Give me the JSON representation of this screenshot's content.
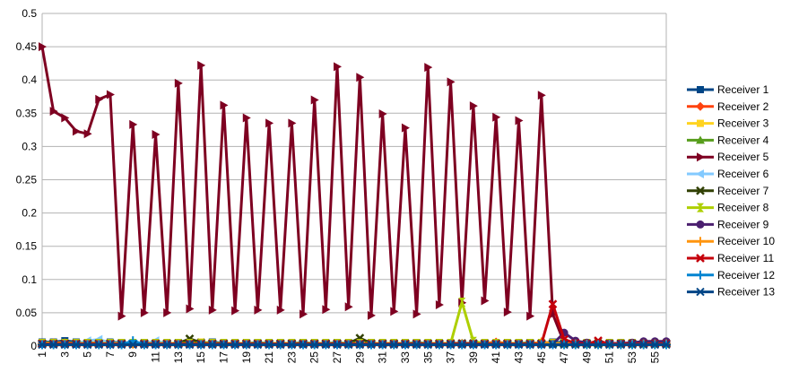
{
  "chart_data": {
    "type": "line",
    "title": "",
    "xlabel": "",
    "ylabel": "",
    "ylim": [
      0,
      0.5
    ],
    "yticks": [
      "0",
      "0.05",
      "0.1",
      "0.15",
      "0.2",
      "0.25",
      "0.3",
      "0.35",
      "0.4",
      "0.45",
      "0.5"
    ],
    "x": [
      1,
      2,
      3,
      4,
      5,
      6,
      7,
      8,
      9,
      10,
      11,
      12,
      13,
      14,
      15,
      16,
      17,
      18,
      19,
      20,
      21,
      22,
      23,
      24,
      25,
      26,
      27,
      28,
      29,
      30,
      31,
      32,
      33,
      34,
      35,
      36,
      37,
      38,
      39,
      40,
      41,
      42,
      43,
      44,
      45,
      46,
      47,
      48,
      49,
      50,
      51,
      52,
      53,
      54,
      55,
      56
    ],
    "xtick_labels": [
      "1",
      "3",
      "5",
      "7",
      "9",
      "11",
      "13",
      "15",
      "17",
      "19",
      "21",
      "23",
      "25",
      "27",
      "29",
      "31",
      "33",
      "35",
      "37",
      "39",
      "41",
      "43",
      "45",
      "47",
      "49",
      "51",
      "53",
      "55"
    ],
    "grid": "horizontal",
    "legend_position": "right",
    "series": [
      {
        "name": "Receiver 1",
        "color": "#004586",
        "marker": "square",
        "values": [
          0.006,
          0.006,
          0.008,
          0.006,
          0.005,
          0.004,
          0.006,
          0.005,
          0.004,
          0.005,
          0.004,
          0.003,
          0.005,
          0.004,
          0.004,
          0.006,
          0.004,
          0.004,
          0.004,
          0.005,
          0.004,
          0.004,
          0.004,
          0.005,
          0.004,
          0.004,
          0.005,
          0.004,
          0.004,
          0.004,
          0.004,
          0.004,
          0.004,
          0.005,
          0.004,
          0.004,
          0.004,
          0.004,
          0.004,
          0.004,
          0.004,
          0.004,
          0.004,
          0.005,
          0.004,
          0.006,
          0.005,
          0.005,
          0.004,
          0.004,
          0.004,
          0.004,
          0.004,
          0.004,
          0.004,
          0.004
        ]
      },
      {
        "name": "Receiver 2",
        "color": "#ff420e",
        "marker": "diamond",
        "values": [
          0.004,
          0.005,
          0.005,
          0.004,
          0.004,
          0.005,
          0.004,
          0.004,
          0.004,
          0.004,
          0.004,
          0.004,
          0.004,
          0.004,
          0.004,
          0.004,
          0.004,
          0.004,
          0.004,
          0.004,
          0.004,
          0.004,
          0.004,
          0.004,
          0.004,
          0.004,
          0.004,
          0.004,
          0.004,
          0.004,
          0.004,
          0.004,
          0.004,
          0.004,
          0.004,
          0.004,
          0.004,
          0.004,
          0.004,
          0.004,
          0.006,
          0.004,
          0.004,
          0.004,
          0.004,
          0.004,
          0.004,
          0.004,
          0.004,
          0.004,
          0.004,
          0.004,
          0.004,
          0.004,
          0.004,
          0.004
        ]
      },
      {
        "name": "Receiver 3",
        "color": "#ffd320",
        "marker": "square",
        "values": [
          0.005,
          0.004,
          0.004,
          0.004,
          0.004,
          0.004,
          0.004,
          0.004,
          0.004,
          0.004,
          0.004,
          0.004,
          0.004,
          0.004,
          0.006,
          0.004,
          0.004,
          0.004,
          0.004,
          0.004,
          0.004,
          0.004,
          0.004,
          0.004,
          0.004,
          0.004,
          0.004,
          0.004,
          0.004,
          0.004,
          0.004,
          0.004,
          0.004,
          0.004,
          0.004,
          0.004,
          0.004,
          0.004,
          0.004,
          0.004,
          0.004,
          0.004,
          0.004,
          0.004,
          0.004,
          0.004,
          0.004,
          0.004,
          0.004,
          0.004,
          0.004,
          0.004,
          0.004,
          0.004,
          0.004,
          0.004
        ]
      },
      {
        "name": "Receiver 4",
        "color": "#579d1c",
        "marker": "triangle",
        "values": [
          0.004,
          0.004,
          0.004,
          0.004,
          0.004,
          0.004,
          0.004,
          0.004,
          0.005,
          0.004,
          0.004,
          0.004,
          0.004,
          0.004,
          0.004,
          0.004,
          0.004,
          0.004,
          0.004,
          0.004,
          0.004,
          0.004,
          0.004,
          0.004,
          0.004,
          0.004,
          0.004,
          0.004,
          0.004,
          0.004,
          0.004,
          0.004,
          0.004,
          0.004,
          0.004,
          0.004,
          0.004,
          0.004,
          0.004,
          0.004,
          0.004,
          0.004,
          0.004,
          0.004,
          0.004,
          0.004,
          0.004,
          0.004,
          0.004,
          0.004,
          0.004,
          0.004,
          0.004,
          0.004,
          0.004,
          0.004
        ]
      },
      {
        "name": "Receiver 5",
        "color": "#7e0021",
        "marker": "triangle-right",
        "values": [
          0.45,
          0.353,
          0.343,
          0.323,
          0.319,
          0.371,
          0.378,
          0.045,
          0.333,
          0.05,
          0.318,
          0.05,
          0.395,
          0.056,
          0.422,
          0.054,
          0.362,
          0.053,
          0.343,
          0.054,
          0.335,
          0.054,
          0.335,
          0.048,
          0.37,
          0.055,
          0.42,
          0.059,
          0.404,
          0.046,
          0.349,
          0.052,
          0.328,
          0.048,
          0.419,
          0.062,
          0.397,
          0.065,
          0.361,
          0.068,
          0.344,
          0.051,
          0.339,
          0.045,
          0.377,
          0.048,
          0.005,
          0.004,
          0.003,
          0.003,
          0.003,
          0.003,
          0.003,
          0.003,
          0.003,
          0.003
        ]
      },
      {
        "name": "Receiver 6",
        "color": "#83caff",
        "marker": "triangle-left",
        "values": [
          0.004,
          0.004,
          0.004,
          0.004,
          0.008,
          0.01,
          0.005,
          0.004,
          0.004,
          0.004,
          0.008,
          0.004,
          0.004,
          0.004,
          0.004,
          0.004,
          0.004,
          0.004,
          0.004,
          0.004,
          0.004,
          0.004,
          0.004,
          0.004,
          0.004,
          0.004,
          0.004,
          0.004,
          0.004,
          0.004,
          0.004,
          0.004,
          0.004,
          0.004,
          0.004,
          0.004,
          0.004,
          0.004,
          0.004,
          0.004,
          0.004,
          0.004,
          0.004,
          0.004,
          0.004,
          0.004,
          0.004,
          0.004,
          0.004,
          0.004,
          0.004,
          0.004,
          0.004,
          0.004,
          0.004,
          0.004
        ]
      },
      {
        "name": "Receiver 7",
        "color": "#314004",
        "marker": "x",
        "values": [
          0.004,
          0.004,
          0.004,
          0.004,
          0.004,
          0.004,
          0.004,
          0.004,
          0.004,
          0.004,
          0.004,
          0.004,
          0.004,
          0.011,
          0.005,
          0.004,
          0.004,
          0.004,
          0.004,
          0.004,
          0.004,
          0.004,
          0.004,
          0.004,
          0.004,
          0.004,
          0.004,
          0.004,
          0.012,
          0.004,
          0.004,
          0.004,
          0.004,
          0.004,
          0.004,
          0.004,
          0.004,
          0.004,
          0.004,
          0.004,
          0.004,
          0.004,
          0.004,
          0.004,
          0.004,
          0.004,
          0.004,
          0.004,
          0.004,
          0.004,
          0.004,
          0.004,
          0.004,
          0.004,
          0.004,
          0.004
        ]
      },
      {
        "name": "Receiver 8",
        "color": "#aecf00",
        "marker": "hourglass",
        "values": [
          0.004,
          0.004,
          0.004,
          0.004,
          0.004,
          0.004,
          0.004,
          0.004,
          0.004,
          0.004,
          0.004,
          0.004,
          0.004,
          0.004,
          0.004,
          0.004,
          0.004,
          0.004,
          0.004,
          0.004,
          0.004,
          0.004,
          0.004,
          0.004,
          0.004,
          0.004,
          0.004,
          0.004,
          0.004,
          0.004,
          0.004,
          0.004,
          0.004,
          0.004,
          0.004,
          0.004,
          0.004,
          0.066,
          0.007,
          0.004,
          0.004,
          0.004,
          0.004,
          0.004,
          0.004,
          0.004,
          0.004,
          0.004,
          0.004,
          0.004,
          0.004,
          0.004,
          0.004,
          0.004,
          0.004,
          0.004
        ]
      },
      {
        "name": "Receiver 9",
        "color": "#4b1f6f",
        "marker": "circle",
        "values": [
          0.003,
          0.003,
          0.003,
          0.003,
          0.003,
          0.003,
          0.003,
          0.003,
          0.003,
          0.003,
          0.003,
          0.003,
          0.003,
          0.003,
          0.003,
          0.003,
          0.003,
          0.003,
          0.003,
          0.003,
          0.003,
          0.003,
          0.003,
          0.003,
          0.003,
          0.003,
          0.003,
          0.003,
          0.003,
          0.003,
          0.003,
          0.003,
          0.003,
          0.003,
          0.003,
          0.003,
          0.003,
          0.003,
          0.003,
          0.003,
          0.003,
          0.003,
          0.003,
          0.003,
          0.003,
          0.003,
          0.02,
          0.008,
          0.005,
          0.004,
          0.004,
          0.004,
          0.005,
          0.007,
          0.007,
          0.007
        ]
      },
      {
        "name": "Receiver 10",
        "color": "#ff950e",
        "marker": "plus",
        "values": [
          0.003,
          0.003,
          0.003,
          0.003,
          0.003,
          0.003,
          0.003,
          0.003,
          0.003,
          0.003,
          0.003,
          0.003,
          0.003,
          0.003,
          0.003,
          0.003,
          0.003,
          0.003,
          0.003,
          0.003,
          0.003,
          0.003,
          0.003,
          0.003,
          0.003,
          0.003,
          0.003,
          0.003,
          0.003,
          0.003,
          0.003,
          0.003,
          0.003,
          0.003,
          0.003,
          0.003,
          0.003,
          0.003,
          0.003,
          0.003,
          0.003,
          0.003,
          0.003,
          0.003,
          0.006,
          0.004,
          0.003,
          0.003,
          0.003,
          0.003,
          0.003,
          0.003,
          0.003,
          0.003,
          0.003,
          0.003
        ]
      },
      {
        "name": "Receiver 11",
        "color": "#c5000b",
        "marker": "x",
        "values": [
          0.003,
          0.003,
          0.003,
          0.003,
          0.003,
          0.003,
          0.003,
          0.003,
          0.003,
          0.003,
          0.003,
          0.003,
          0.003,
          0.003,
          0.003,
          0.003,
          0.003,
          0.003,
          0.003,
          0.003,
          0.003,
          0.003,
          0.003,
          0.003,
          0.003,
          0.003,
          0.003,
          0.003,
          0.003,
          0.003,
          0.003,
          0.003,
          0.003,
          0.003,
          0.003,
          0.003,
          0.003,
          0.003,
          0.003,
          0.003,
          0.003,
          0.003,
          0.003,
          0.003,
          0.003,
          0.063,
          0.01,
          0.004,
          0.003,
          0.008,
          0.003,
          0.003,
          0.003,
          0.003,
          0.003,
          0.003
        ]
      },
      {
        "name": "Receiver 12",
        "color": "#0084d1",
        "marker": "plus",
        "values": [
          0.002,
          0.002,
          0.002,
          0.002,
          0.002,
          0.002,
          0.002,
          0.002,
          0.008,
          0.002,
          0.002,
          0.002,
          0.002,
          0.002,
          0.002,
          0.002,
          0.002,
          0.002,
          0.002,
          0.002,
          0.002,
          0.002,
          0.002,
          0.002,
          0.002,
          0.002,
          0.002,
          0.002,
          0.002,
          0.002,
          0.002,
          0.002,
          0.002,
          0.002,
          0.002,
          0.002,
          0.002,
          0.002,
          0.002,
          0.002,
          0.002,
          0.002,
          0.002,
          0.002,
          0.002,
          0.002,
          0.002,
          0.002,
          0.002,
          0.002,
          0.002,
          0.002,
          0.002,
          0.002,
          0.002,
          0.002
        ]
      },
      {
        "name": "Receiver 13",
        "color": "#004586",
        "marker": "star",
        "values": [
          0.002,
          0.002,
          0.002,
          0.002,
          0.002,
          0.002,
          0.002,
          0.002,
          0.002,
          0.002,
          0.002,
          0.002,
          0.002,
          0.002,
          0.002,
          0.002,
          0.002,
          0.002,
          0.002,
          0.002,
          0.002,
          0.002,
          0.002,
          0.002,
          0.002,
          0.002,
          0.002,
          0.002,
          0.002,
          0.002,
          0.002,
          0.002,
          0.002,
          0.002,
          0.002,
          0.002,
          0.002,
          0.002,
          0.002,
          0.002,
          0.002,
          0.002,
          0.002,
          0.002,
          0.002,
          0.002,
          0.002,
          0.002,
          0.002,
          0.002,
          0.002,
          0.002,
          0.002,
          0.002,
          0.002,
          0.002
        ]
      }
    ]
  }
}
